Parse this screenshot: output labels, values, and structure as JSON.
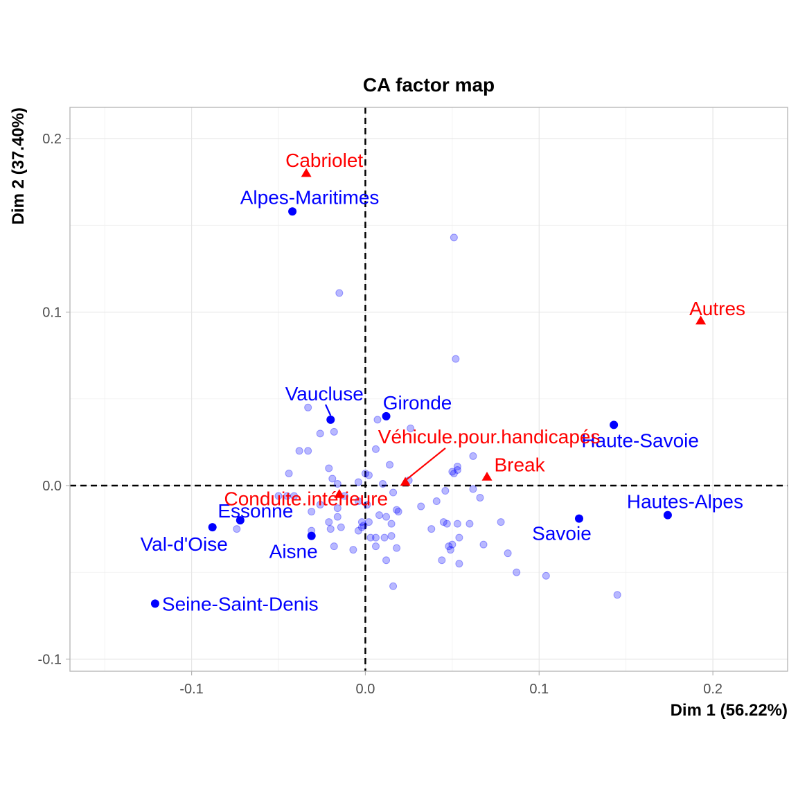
{
  "chart_data": {
    "type": "scatter",
    "title": "CA factor map",
    "xlabel": "Dim 1 (56.22%)",
    "ylabel": "Dim 2 (37.40%)",
    "xlim": [
      -0.17,
      0.243
    ],
    "ylim": [
      -0.107,
      0.218
    ],
    "x_ticks": [
      -0.1,
      0.0,
      0.1,
      0.2
    ],
    "x_tick_labels": [
      "-0.1",
      "0.0",
      "0.1",
      "0.2"
    ],
    "y_ticks": [
      -0.1,
      0.0,
      0.1,
      0.2
    ],
    "y_tick_labels": [
      "-0.1",
      "0.0",
      "0.1",
      "0.2"
    ],
    "grid": true,
    "reference_lines": {
      "x": 0,
      "y": 0,
      "style": "dashed"
    },
    "colors": {
      "rows": "#0000ff",
      "columns": "#ff0000"
    },
    "highlighted_rows": [
      {
        "label": "Alpes-Maritimes",
        "x": -0.042,
        "y": 0.158
      },
      {
        "label": "Vaucluse",
        "x": -0.02,
        "y": 0.038
      },
      {
        "label": "Gironde",
        "x": 0.012,
        "y": 0.04
      },
      {
        "label": "Haute-Savoie",
        "x": 0.143,
        "y": 0.035
      },
      {
        "label": "Hautes-Alpes",
        "x": 0.174,
        "y": -0.017
      },
      {
        "label": "Savoie",
        "x": 0.123,
        "y": -0.019
      },
      {
        "label": "Essonne",
        "x": -0.072,
        "y": -0.02
      },
      {
        "label": "Val-d'Oise",
        "x": -0.088,
        "y": -0.024
      },
      {
        "label": "Aisne",
        "x": -0.031,
        "y": -0.029
      },
      {
        "label": "Seine-Saint-Denis",
        "x": -0.121,
        "y": -0.068
      }
    ],
    "columns": [
      {
        "label": "Cabriolet",
        "x": -0.034,
        "y": 0.18
      },
      {
        "label": "Autres",
        "x": 0.193,
        "y": 0.095
      },
      {
        "label": "Véhicule.pour.handicapés",
        "x": 0.023,
        "y": 0.002
      },
      {
        "label": "Break",
        "x": 0.07,
        "y": 0.005
      },
      {
        "label": "Conduite.intérieure",
        "x": -0.015,
        "y": -0.005
      }
    ],
    "other_rows": [
      [
        0.051,
        0.143
      ],
      [
        -0.015,
        0.111
      ],
      [
        0.052,
        0.073
      ],
      [
        -0.033,
        0.045
      ],
      [
        -0.018,
        0.031
      ],
      [
        -0.026,
        0.03
      ],
      [
        0.026,
        0.033
      ],
      [
        0.007,
        0.038
      ],
      [
        -0.038,
        0.02
      ],
      [
        -0.033,
        0.02
      ],
      [
        0.006,
        0.021
      ],
      [
        0.062,
        0.017
      ],
      [
        0.014,
        0.012
      ],
      [
        0.053,
        0.011
      ],
      [
        -0.021,
        0.01
      ],
      [
        0.05,
        0.008
      ],
      [
        0.053,
        0.009
      ],
      [
        0.051,
        0.007
      ],
      [
        0.0,
        0.007
      ],
      [
        -0.044,
        0.007
      ],
      [
        0.002,
        0.006
      ],
      [
        -0.019,
        0.004
      ],
      [
        0.025,
        0.003
      ],
      [
        0.01,
        0.001
      ],
      [
        -0.016,
        0.001
      ],
      [
        -0.004,
        0.002
      ],
      [
        0.046,
        -0.003
      ],
      [
        0.062,
        -0.002
      ],
      [
        0.016,
        -0.004
      ],
      [
        0.066,
        -0.007
      ],
      [
        -0.012,
        -0.006
      ],
      [
        -0.045,
        -0.006
      ],
      [
        -0.05,
        -0.006
      ],
      [
        -0.041,
        -0.006
      ],
      [
        -0.004,
        -0.009
      ],
      [
        -0.026,
        -0.011
      ],
      [
        0.001,
        -0.011
      ],
      [
        0.041,
        -0.009
      ],
      [
        0.032,
        -0.012
      ],
      [
        0.018,
        -0.014
      ],
      [
        -0.031,
        -0.015
      ],
      [
        -0.016,
        -0.013
      ],
      [
        0.019,
        -0.015
      ],
      [
        0.008,
        -0.017
      ],
      [
        -0.016,
        -0.018
      ],
      [
        0.012,
        -0.018
      ],
      [
        -0.021,
        -0.021
      ],
      [
        -0.002,
        -0.021
      ],
      [
        0.002,
        -0.021
      ],
      [
        0.015,
        -0.022
      ],
      [
        0.045,
        -0.021
      ],
      [
        0.047,
        -0.022
      ],
      [
        0.053,
        -0.022
      ],
      [
        0.06,
        -0.022
      ],
      [
        0.078,
        -0.021
      ],
      [
        -0.074,
        -0.025
      ],
      [
        -0.031,
        -0.026
      ],
      [
        -0.02,
        -0.025
      ],
      [
        -0.014,
        -0.024
      ],
      [
        -0.002,
        -0.024
      ],
      [
        -0.004,
        -0.026
      ],
      [
        -0.001,
        -0.023
      ],
      [
        0.038,
        -0.025
      ],
      [
        0.054,
        -0.03
      ],
      [
        0.003,
        -0.03
      ],
      [
        0.006,
        -0.03
      ],
      [
        0.011,
        -0.03
      ],
      [
        0.015,
        -0.029
      ],
      [
        0.05,
        -0.034
      ],
      [
        0.048,
        -0.035
      ],
      [
        0.068,
        -0.034
      ],
      [
        -0.018,
        -0.035
      ],
      [
        0.006,
        -0.035
      ],
      [
        0.018,
        -0.036
      ],
      [
        -0.007,
        -0.037
      ],
      [
        0.049,
        -0.037
      ],
      [
        0.082,
        -0.039
      ],
      [
        0.012,
        -0.043
      ],
      [
        0.044,
        -0.043
      ],
      [
        0.054,
        -0.045
      ],
      [
        0.087,
        -0.05
      ],
      [
        0.104,
        -0.052
      ],
      [
        0.016,
        -0.058
      ],
      [
        0.145,
        -0.063
      ]
    ]
  }
}
